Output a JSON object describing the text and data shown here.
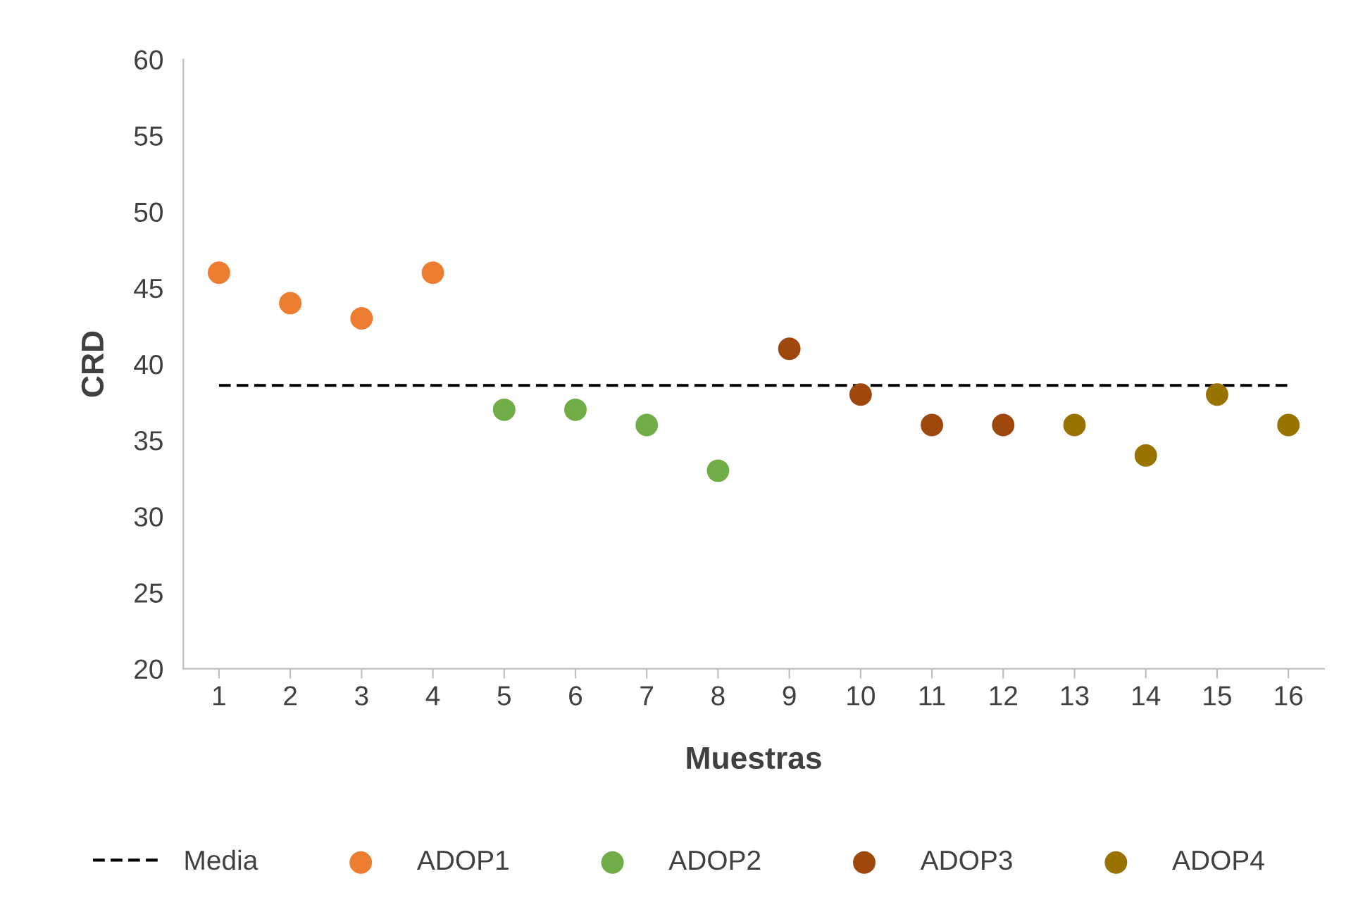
{
  "chart_data": {
    "type": "scatter",
    "xlabel": "Muestras",
    "ylabel": "CRD",
    "categories": [
      "1",
      "2",
      "3",
      "4",
      "5",
      "6",
      "7",
      "8",
      "9",
      "10",
      "11",
      "12",
      "13",
      "14",
      "15",
      "16"
    ],
    "ylim": [
      20,
      60
    ],
    "yticks": [
      20,
      25,
      30,
      35,
      40,
      45,
      50,
      55,
      60
    ],
    "grid": false,
    "legend": "bottom",
    "marker": "circle",
    "series": [
      {
        "name": "Media",
        "type": "line",
        "line_style": "dashed",
        "marker": "none",
        "color": "#000000",
        "values": [
          38.6,
          38.6,
          38.6,
          38.6,
          38.6,
          38.6,
          38.6,
          38.6,
          38.6,
          38.6,
          38.6,
          38.6,
          38.6,
          38.6,
          38.6,
          38.6
        ]
      },
      {
        "name": "ADOP1",
        "color": "#ed7d31",
        "values": [
          46,
          44,
          43,
          46,
          null,
          null,
          null,
          null,
          null,
          null,
          null,
          null,
          null,
          null,
          null,
          null
        ]
      },
      {
        "name": "ADOP2",
        "color": "#70ad47",
        "values": [
          null,
          null,
          null,
          null,
          37,
          37,
          36,
          33,
          null,
          null,
          null,
          null,
          null,
          null,
          null,
          null
        ]
      },
      {
        "name": "ADOP3",
        "color": "#9e480e",
        "values": [
          null,
          null,
          null,
          null,
          null,
          null,
          null,
          null,
          41,
          38,
          36,
          36,
          null,
          null,
          null,
          null
        ]
      },
      {
        "name": "ADOP4",
        "color": "#997300",
        "values": [
          null,
          null,
          null,
          null,
          null,
          null,
          null,
          null,
          null,
          null,
          null,
          null,
          36,
          34,
          38,
          36
        ]
      }
    ]
  }
}
